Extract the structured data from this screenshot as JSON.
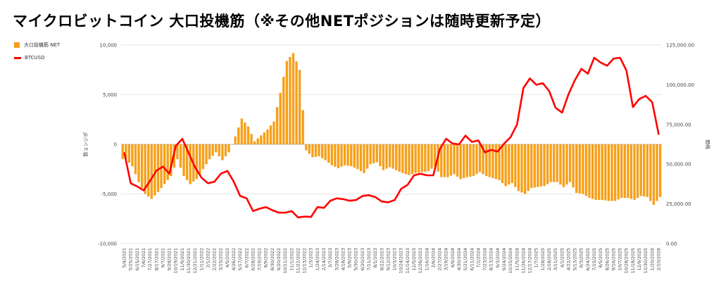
{
  "title": "マイクロビットコイン 大口投機筋（※その他NETポジションは随時更新予定）",
  "chart_data": {
    "type": "bar+line",
    "title": "マイクロビットコイン 大口投機筋（※その他NETポジションは随時更新予定）",
    "legend": [
      {
        "label": "大口投機筋 NET",
        "color": "#f5a01a",
        "kind": "bar"
      },
      {
        "label": "BTCUSD",
        "color": "#ff0000",
        "kind": "line"
      }
    ],
    "left_axis": {
      "label": "数ョンジポ",
      "min": -10000,
      "max": 10000,
      "ticks": [
        "10,000",
        "5,000",
        "0",
        "-5,000",
        "-10,000"
      ],
      "tick_values": [
        10000,
        5000,
        0,
        -5000,
        -10000
      ]
    },
    "right_axis": {
      "label": "価格",
      "min": 0,
      "max": 125000,
      "ticks": [
        "125,000.00",
        "100,000.00",
        "75,000.00",
        "50,000.00",
        "25,000.00",
        "0.00"
      ],
      "tick_values": [
        125000,
        100000,
        75000,
        50000,
        25000,
        0
      ]
    },
    "x_labels": [
      "5/4/2021",
      "5/25/2021",
      "6/15/2021",
      "7/6/2021",
      "7/27/2021",
      "8/17/2021",
      "9/7/2021",
      "9/28/2021",
      "10/19/2021",
      "11/9/2021",
      "11/30/2021",
      "12/21/2021",
      "1/11/2022",
      "2/1/2022",
      "2/22/2022",
      "3/15/2022",
      "4/5/2022",
      "4/26/2022",
      "5/17/2022",
      "6/7/2022",
      "6/28/2022",
      "7/19/2022",
      "8/9/2022",
      "8/30/2022",
      "9/20/2022",
      "10/11/2022",
      "11/1/2022",
      "11/22/2022",
      "12/13/2022",
      "1/3/2023",
      "1/24/2023",
      "2/14/2023",
      "3/7/2023",
      "3/28/2023",
      "4/18/2023",
      "5/9/2023",
      "5/30/2023",
      "6/20/2023",
      "7/11/2023",
      "8/1/2023",
      "8/22/2023",
      "9/12/2023",
      "10/3/2023",
      "10/24/2023",
      "11/14/2023",
      "12/5/2023",
      "12/26/2023",
      "1/16/2024",
      "2/6/2024",
      "2/27/2024",
      "3/19/2024",
      "4/9/2024",
      "4/30/2024",
      "5/21/2024",
      "6/11/2024",
      "7/2/2024",
      "7/23/2024",
      "8/13/2024",
      "9/3/2024",
      "9/24/2024",
      "10/15/2024",
      "11/5/2024",
      "11/26/2024",
      "12/17/2024",
      "1/7/2025",
      "1/28/2025",
      "2/18/2025",
      "3/11/2025",
      "4/1/2025",
      "4/22/2025",
      "5/13/2025",
      "6/3/2025",
      "6/24/2025",
      "7/15/2025",
      "8/5/2025",
      "8/26/2025",
      "9/16/2025",
      "10/7/2025",
      "10/28/2025",
      "11/18/2025",
      "12/9/2025",
      "12/30/2025",
      "1/20/2026",
      "2/10/2026"
    ],
    "net_positions": [
      -1500,
      -2200,
      -3800,
      -5000,
      -5500,
      -4800,
      -4000,
      -3200,
      -1500,
      -3200,
      -4000,
      -3500,
      -2500,
      -1500,
      -800,
      -1600,
      -800,
      800,
      2600,
      1800,
      300,
      900,
      1500,
      2300,
      5200,
      8400,
      9200,
      7500,
      -600,
      -1300,
      -1200,
      -1600,
      -2100,
      -2400,
      -2100,
      -2200,
      -2500,
      -2900,
      -2000,
      -1800,
      -2600,
      -2300,
      -2600,
      -2900,
      -3100,
      -2900,
      -2800,
      -2700,
      -2200,
      -3300,
      -3300,
      -3000,
      -3500,
      -3300,
      -3200,
      -2800,
      -3200,
      -3400,
      -3600,
      -4200,
      -3900,
      -4700,
      -5000,
      -4400,
      -4300,
      -4200,
      -3800,
      -3800,
      -4300,
      -3800,
      -4900,
      -5000,
      -5400,
      -5600,
      -5600,
      -5700,
      -5700,
      -5400,
      -5400,
      -5600,
      -5200,
      -5300,
      -6100,
      -5300
    ],
    "btc_price": [
      57000,
      38000,
      36000,
      33500,
      39500,
      46000,
      48500,
      44000,
      61500,
      66000,
      57000,
      48000,
      41500,
      38000,
      39000,
      44000,
      45800,
      39000,
      30000,
      28500,
      20500,
      22000,
      23000,
      21000,
      19500,
      19500,
      20500,
      16500,
      17000,
      16800,
      23000,
      22500,
      27000,
      28500,
      28000,
      27000,
      27500,
      30000,
      30500,
      29300,
      26500,
      26000,
      27500,
      34500,
      37000,
      43000,
      44000,
      43000,
      43000,
      59500,
      66000,
      63000,
      62500,
      68000,
      64000,
      65000,
      57500,
      59000,
      58000,
      63000,
      67000,
      75000,
      98000,
      104000,
      100000,
      101000,
      96000,
      85500,
      82500,
      94000,
      103000,
      110000,
      107000,
      117000,
      114000,
      112000,
      116500,
      117000,
      109000,
      86000,
      91000,
      93000,
      89000,
      69000
    ]
  }
}
